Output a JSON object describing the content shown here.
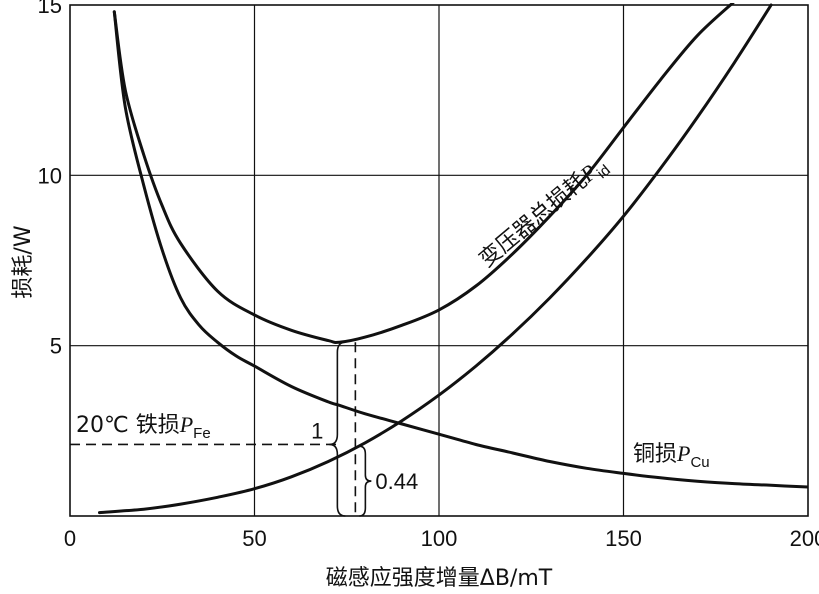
{
  "chart_data": {
    "type": "line",
    "xlabel": "磁感应强度增量ΔB/mT",
    "ylabel": "损耗/W",
    "xlim": [
      0,
      200
    ],
    "ylim": [
      0,
      15
    ],
    "xticks": [
      "0",
      "50",
      "100",
      "150",
      "200"
    ],
    "yticks": [
      "5",
      "10",
      "15"
    ],
    "grid": true,
    "series": [
      {
        "name": "变压器总损耗P_id",
        "label_main": "变压器总损耗",
        "label_var": "P",
        "label_sub": "id",
        "x": [
          12,
          15,
          20,
          25,
          30,
          40,
          50,
          60,
          70,
          73,
          80,
          90,
          100,
          110,
          120,
          130,
          140,
          150,
          160,
          170,
          180
        ],
        "y": [
          14.8,
          12.5,
          10.6,
          9.1,
          8.0,
          6.6,
          5.9,
          5.45,
          5.15,
          5.1,
          5.25,
          5.6,
          6.05,
          6.75,
          7.7,
          8.8,
          10.0,
          11.4,
          12.8,
          14.1,
          15.1
        ]
      },
      {
        "name": "20℃铁损P_Fe",
        "label_main": "20℃ 铁损",
        "label_var": "P",
        "label_sub": "Fe",
        "x": [
          12,
          15,
          20,
          25,
          30,
          35,
          40,
          45,
          50,
          60,
          70,
          73,
          80,
          90,
          100,
          110,
          120,
          130,
          140,
          150,
          160,
          170,
          180,
          190,
          200
        ],
        "y": [
          14.8,
          12.0,
          9.7,
          7.8,
          6.4,
          5.6,
          5.1,
          4.7,
          4.4,
          3.8,
          3.35,
          3.25,
          3.0,
          2.7,
          2.4,
          2.1,
          1.85,
          1.6,
          1.4,
          1.25,
          1.12,
          1.02,
          0.95,
          0.9,
          0.85
        ]
      },
      {
        "name": "铜损P_Cu",
        "label_main": "铜损",
        "label_var": "P",
        "label_sub": "Cu",
        "x": [
          8,
          20,
          30,
          40,
          50,
          60,
          70,
          80,
          90,
          100,
          110,
          120,
          130,
          140,
          150,
          160,
          170,
          180,
          190
        ],
        "y": [
          0.1,
          0.2,
          0.35,
          0.55,
          0.8,
          1.15,
          1.6,
          2.15,
          2.8,
          3.55,
          4.4,
          5.35,
          6.4,
          7.55,
          8.8,
          10.2,
          11.7,
          13.3,
          15.0
        ]
      }
    ],
    "annotations": {
      "bracket_upper": "1",
      "bracket_lower": "0.44",
      "x_dashed": 73,
      "y_fe_level": 2.1
    }
  }
}
